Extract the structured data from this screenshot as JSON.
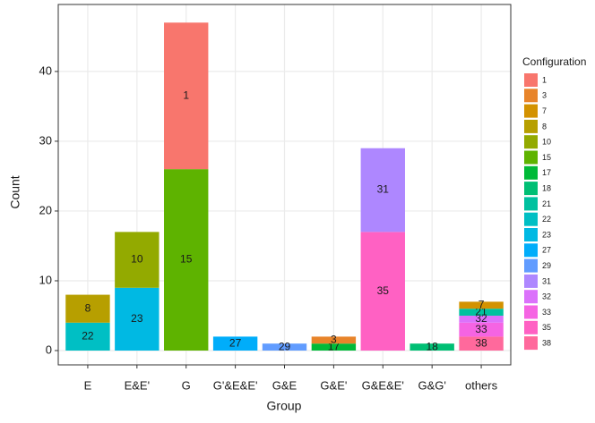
{
  "chart_data": {
    "type": "bar",
    "stacked": true,
    "x_label": "Group",
    "y_label": "Count",
    "legend_title": "Configuration",
    "legend_position": "right",
    "grid": true,
    "categories": [
      "E",
      "E&E'",
      "G",
      "G'&E&E'",
      "G&E",
      "G&E'",
      "G&E&E'",
      "G&G'",
      "others"
    ],
    "ylim": [
      -2.05,
      49.6
    ],
    "yticks": [
      0,
      10,
      20,
      30,
      40
    ],
    "series": [
      {
        "name": "1",
        "color": "#F8766D",
        "values": [
          null,
          null,
          21,
          null,
          null,
          null,
          null,
          null,
          null
        ]
      },
      {
        "name": "3",
        "color": "#E8842A",
        "values": [
          null,
          null,
          null,
          null,
          null,
          1,
          null,
          null,
          null
        ]
      },
      {
        "name": "7",
        "color": "#D39200",
        "values": [
          null,
          null,
          null,
          null,
          null,
          null,
          null,
          null,
          1
        ]
      },
      {
        "name": "8",
        "color": "#B79F00",
        "values": [
          4,
          null,
          null,
          null,
          null,
          null,
          null,
          null,
          null
        ]
      },
      {
        "name": "10",
        "color": "#93AA00",
        "values": [
          null,
          8,
          null,
          null,
          null,
          null,
          null,
          null,
          null
        ]
      },
      {
        "name": "15",
        "color": "#5EB300",
        "values": [
          null,
          null,
          26,
          null,
          null,
          null,
          null,
          null,
          null
        ]
      },
      {
        "name": "17",
        "color": "#00BA38",
        "values": [
          null,
          null,
          null,
          null,
          null,
          1,
          null,
          null,
          null
        ]
      },
      {
        "name": "18",
        "color": "#00BF74",
        "values": [
          null,
          null,
          null,
          null,
          null,
          null,
          null,
          1,
          null
        ]
      },
      {
        "name": "21",
        "color": "#00C19F",
        "values": [
          null,
          null,
          null,
          null,
          null,
          null,
          null,
          null,
          1
        ]
      },
      {
        "name": "22",
        "color": "#00BFC4",
        "values": [
          4,
          null,
          null,
          null,
          null,
          null,
          null,
          null,
          null
        ]
      },
      {
        "name": "23",
        "color": "#00B9E3",
        "values": [
          null,
          9,
          null,
          null,
          null,
          null,
          null,
          null,
          null
        ]
      },
      {
        "name": "27",
        "color": "#00ADFA",
        "values": [
          null,
          null,
          null,
          2,
          null,
          null,
          null,
          null,
          null
        ]
      },
      {
        "name": "29",
        "color": "#619CFF",
        "values": [
          null,
          null,
          null,
          null,
          1,
          null,
          null,
          null,
          null
        ]
      },
      {
        "name": "31",
        "color": "#AE87FF",
        "values": [
          null,
          null,
          null,
          null,
          null,
          null,
          12,
          null,
          null
        ]
      },
      {
        "name": "32",
        "color": "#DB72FB",
        "values": [
          null,
          null,
          null,
          null,
          null,
          null,
          null,
          null,
          1
        ]
      },
      {
        "name": "33",
        "color": "#F564E3",
        "values": [
          null,
          null,
          null,
          null,
          null,
          null,
          null,
          null,
          2
        ]
      },
      {
        "name": "35",
        "color": "#FF61C3",
        "values": [
          null,
          null,
          null,
          null,
          null,
          null,
          17,
          null,
          null
        ]
      },
      {
        "name": "38",
        "color": "#FF699C",
        "values": [
          null,
          null,
          null,
          null,
          null,
          null,
          null,
          null,
          2
        ]
      }
    ]
  }
}
